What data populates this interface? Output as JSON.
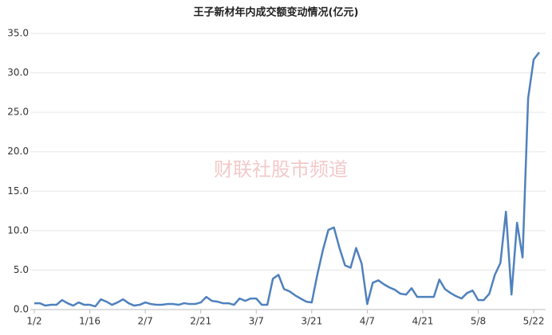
{
  "chart_data": {
    "type": "line",
    "title": "王子新材年内成交额变动情况(亿元)",
    "watermark": "财联社股市频道",
    "categories": [
      "1/2",
      null,
      null,
      null,
      null,
      null,
      null,
      null,
      null,
      null,
      "1/16",
      null,
      null,
      null,
      null,
      null,
      null,
      null,
      null,
      null,
      "2/7",
      null,
      null,
      null,
      null,
      null,
      null,
      null,
      null,
      null,
      "2/21",
      null,
      null,
      null,
      null,
      null,
      null,
      null,
      null,
      null,
      "3/7",
      null,
      null,
      null,
      null,
      null,
      null,
      null,
      null,
      null,
      "3/21",
      null,
      null,
      null,
      null,
      null,
      null,
      null,
      null,
      null,
      "4/7",
      null,
      null,
      null,
      null,
      null,
      null,
      null,
      null,
      null,
      "4/21",
      null,
      null,
      null,
      null,
      null,
      null,
      null,
      null,
      null,
      "5/8",
      null,
      null,
      null,
      null,
      null,
      null,
      null,
      null,
      null,
      "5/22",
      null
    ],
    "series": [
      {
        "color": "#4f81bd",
        "values": [
          0.8,
          0.8,
          0.5,
          0.6,
          0.6,
          1.2,
          0.8,
          0.5,
          0.9,
          0.6,
          0.6,
          0.4,
          1.3,
          1.0,
          0.6,
          0.9,
          1.3,
          0.8,
          0.5,
          0.6,
          0.9,
          0.7,
          0.6,
          0.6,
          0.7,
          0.7,
          0.6,
          0.8,
          0.7,
          0.7,
          0.9,
          1.6,
          1.1,
          1.0,
          0.8,
          0.8,
          0.6,
          1.4,
          1.1,
          1.4,
          1.4,
          0.6,
          0.6,
          3.9,
          4.4,
          2.6,
          2.3,
          1.8,
          1.4,
          1.0,
          0.9,
          4.4,
          7.5,
          10.1,
          10.4,
          7.8,
          5.6,
          5.3,
          7.8,
          5.8,
          0.7,
          3.4,
          3.7,
          3.2,
          2.8,
          2.5,
          2.0,
          1.9,
          2.7,
          1.6,
          1.6,
          1.6,
          1.6,
          3.8,
          2.6,
          2.1,
          1.7,
          1.4,
          2.1,
          2.4,
          1.2,
          1.2,
          2.0,
          4.4,
          5.9,
          12.4,
          1.9,
          11.0,
          6.6,
          26.8,
          31.7,
          32.6
        ]
      }
    ],
    "ylim": [
      0,
      35
    ],
    "yticks": [
      {
        "value": 0,
        "label": "0.0"
      },
      {
        "value": 5,
        "label": "5.0"
      },
      {
        "value": 10,
        "label": "10.0"
      },
      {
        "value": 15,
        "label": "15.0"
      },
      {
        "value": 20,
        "label": "20.0"
      },
      {
        "value": 25,
        "label": "25.0"
      },
      {
        "value": 30,
        "label": "30.0"
      },
      {
        "value": 35,
        "label": "35.0"
      }
    ],
    "grid": true
  }
}
